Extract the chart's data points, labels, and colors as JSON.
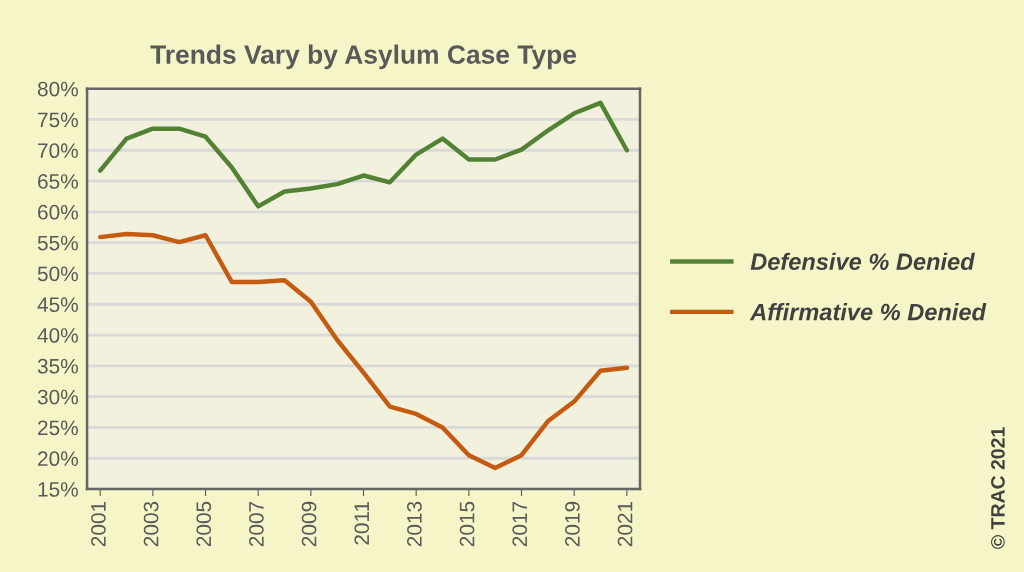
{
  "chart_data": {
    "type": "line",
    "title": "Trends Vary by Asylum Case Type",
    "x": [
      2001,
      2002,
      2003,
      2004,
      2005,
      2006,
      2007,
      2008,
      2009,
      2010,
      2011,
      2012,
      2013,
      2014,
      2015,
      2016,
      2017,
      2018,
      2019,
      2020,
      2021
    ],
    "series": [
      {
        "name": "Defensive % Denied",
        "color": "#548235",
        "values": [
          66.7,
          71.9,
          73.5,
          73.5,
          72.2,
          67.2,
          60.9,
          63.3,
          63.8,
          64.5,
          65.9,
          64.8,
          69.3,
          71.9,
          68.5,
          68.5,
          70.1,
          73.2,
          76.0,
          77.7,
          70.0
        ]
      },
      {
        "name": "Affirmative % Denied",
        "color": "#c55a11",
        "values": [
          55.9,
          56.4,
          56.2,
          55.1,
          56.2,
          48.6,
          48.6,
          48.9,
          45.4,
          39.2,
          33.9,
          28.4,
          27.2,
          25.0,
          20.5,
          18.4,
          20.5,
          26.0,
          29.2,
          34.2,
          34.7
        ]
      }
    ],
    "xlim": [
      2000.5,
      2021.5
    ],
    "xticks": [
      2001,
      2003,
      2005,
      2007,
      2009,
      2011,
      2013,
      2015,
      2017,
      2019,
      2021
    ],
    "ylim": [
      15,
      80
    ],
    "yticks": [
      {
        "value": 15,
        "label": "15%"
      },
      {
        "value": 20,
        "label": "20%"
      },
      {
        "value": 25,
        "label": "25%"
      },
      {
        "value": 30,
        "label": "30%"
      },
      {
        "value": 35,
        "label": "35%"
      },
      {
        "value": 40,
        "label": "40%"
      },
      {
        "value": 45,
        "label": "45%"
      },
      {
        "value": 50,
        "label": "50%"
      },
      {
        "value": 55,
        "label": "55%"
      },
      {
        "value": 60,
        "label": "60%"
      },
      {
        "value": 65,
        "label": "65%"
      },
      {
        "value": 70,
        "label": "70%"
      },
      {
        "value": 75,
        "label": "75%"
      },
      {
        "value": 80,
        "label": "80%"
      }
    ],
    "grid": "y",
    "legend": "right",
    "marker": "none",
    "line_style": "solid",
    "annotations": [
      "© TRAC 2021"
    ]
  }
}
